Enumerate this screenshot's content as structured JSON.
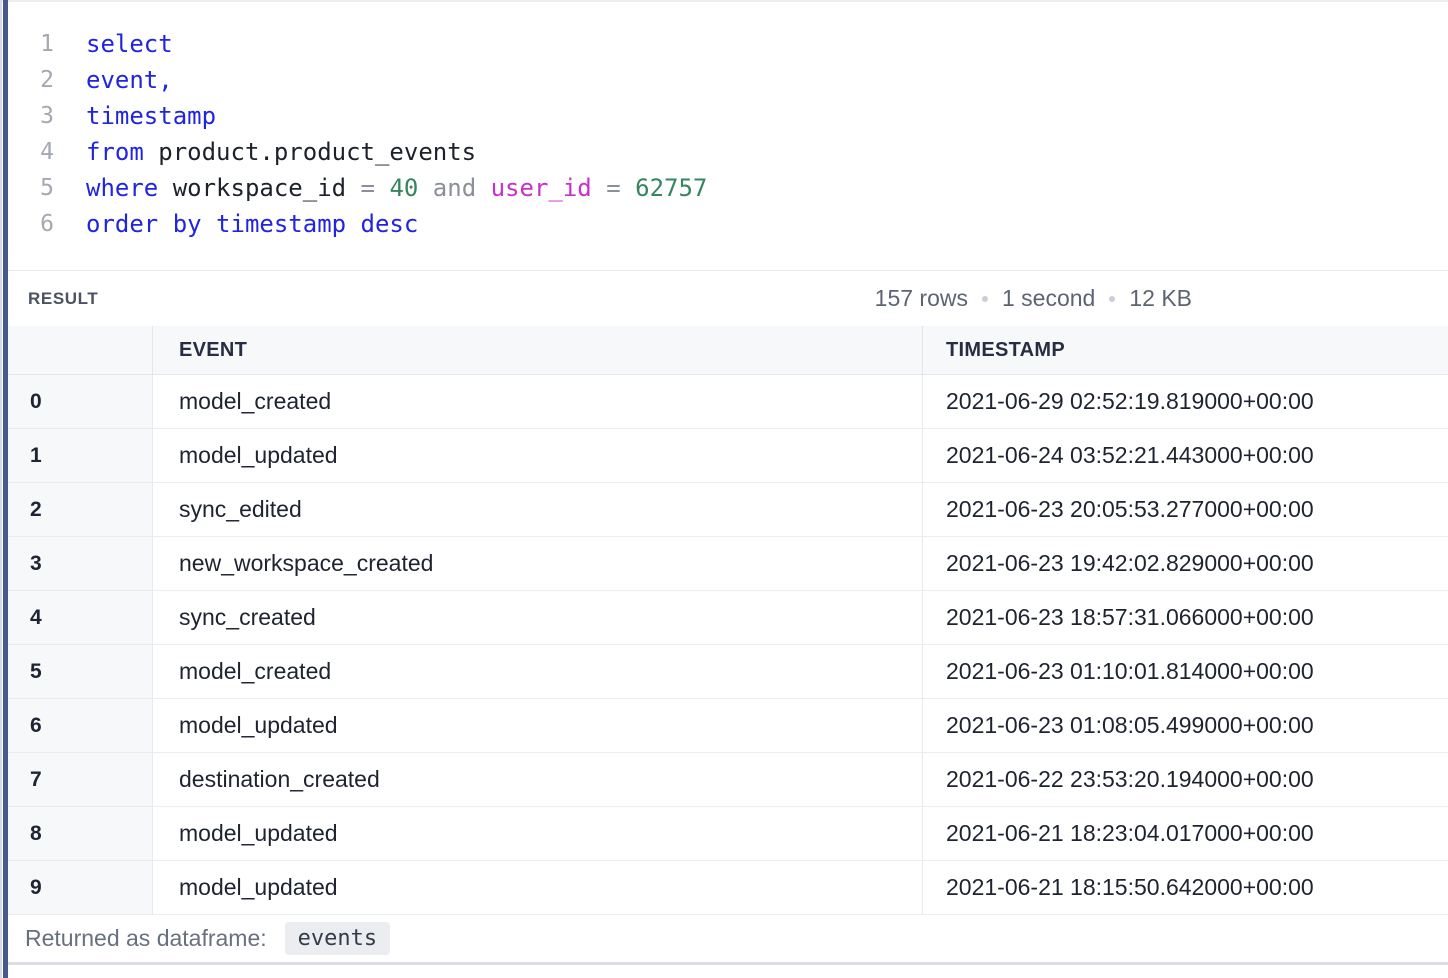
{
  "colors": {
    "accent_bar": "#46598F",
    "kw": "#2025E0",
    "num": "#37855E",
    "varname": "#C92FC9",
    "op": "#8A8F9A"
  },
  "editor": {
    "lines": [
      {
        "number": "1",
        "tokens": [
          "select"
        ]
      },
      {
        "number": "2",
        "tokens": [
          "event,"
        ]
      },
      {
        "number": "3",
        "tokens": [
          "timestamp"
        ]
      },
      {
        "number": "4",
        "tokens": [
          "from",
          " product.product_events"
        ]
      },
      {
        "number": "5",
        "tokens": [
          "where",
          " workspace_id ",
          "= ",
          "40",
          " and ",
          "user_id",
          " = ",
          "62757"
        ]
      },
      {
        "number": "6",
        "tokens": [
          "order by timestamp desc"
        ]
      }
    ]
  },
  "result": {
    "label": "RESULT",
    "stats": {
      "rows": "157 rows",
      "duration": "1 second",
      "size": "12 KB"
    }
  },
  "table": {
    "headers": {
      "index": "",
      "event": "EVENT",
      "timestamp": "TIMESTAMP"
    },
    "rows": [
      {
        "index": "0",
        "event": "model_created",
        "timestamp": "2021-06-29 02:52:19.819000+00:00"
      },
      {
        "index": "1",
        "event": "model_updated",
        "timestamp": "2021-06-24 03:52:21.443000+00:00"
      },
      {
        "index": "2",
        "event": "sync_edited",
        "timestamp": "2021-06-23 20:05:53.277000+00:00"
      },
      {
        "index": "3",
        "event": "new_workspace_created",
        "timestamp": "2021-06-23 19:42:02.829000+00:00"
      },
      {
        "index": "4",
        "event": "sync_created",
        "timestamp": "2021-06-23 18:57:31.066000+00:00"
      },
      {
        "index": "5",
        "event": "model_created",
        "timestamp": "2021-06-23 01:10:01.814000+00:00"
      },
      {
        "index": "6",
        "event": "model_updated",
        "timestamp": "2021-06-23 01:08:05.499000+00:00"
      },
      {
        "index": "7",
        "event": "destination_created",
        "timestamp": "2021-06-22 23:53:20.194000+00:00"
      },
      {
        "index": "8",
        "event": "model_updated",
        "timestamp": "2021-06-21 18:23:04.017000+00:00"
      },
      {
        "index": "9",
        "event": "model_updated",
        "timestamp": "2021-06-21 18:15:50.642000+00:00"
      }
    ]
  },
  "footer": {
    "label": "Returned as dataframe:",
    "dataframe_name": "events"
  }
}
